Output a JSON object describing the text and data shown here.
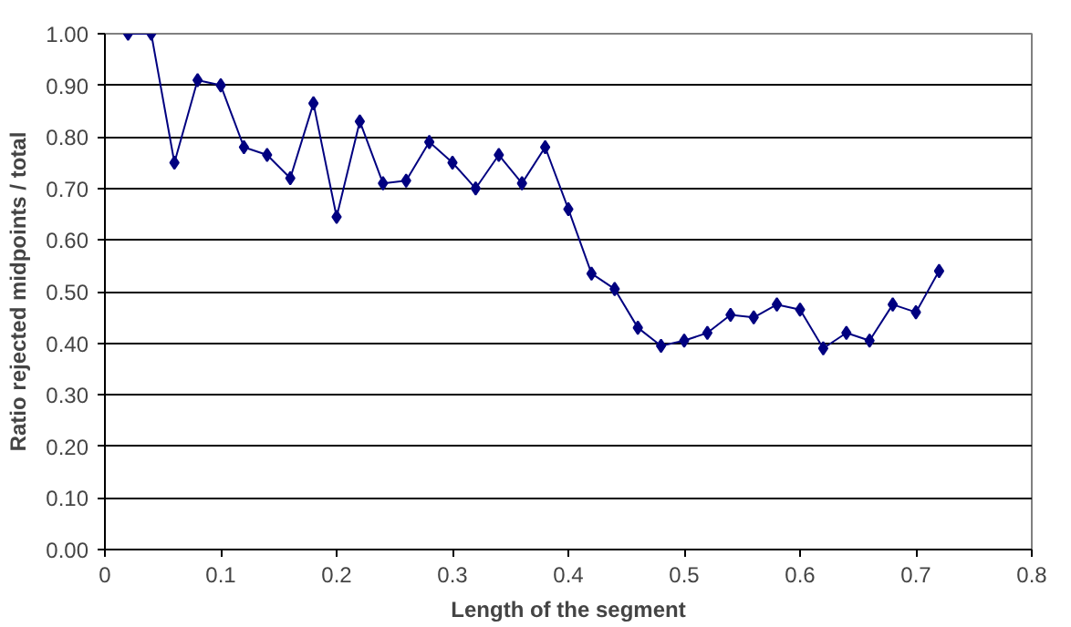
{
  "chart_data": {
    "type": "line",
    "xlabel": "Length of the segment",
    "ylabel": "Ratio rejected midpoints / total",
    "x": [
      0.02,
      0.04,
      0.06,
      0.08,
      0.1,
      0.12,
      0.14,
      0.16,
      0.18,
      0.2,
      0.22,
      0.24,
      0.26,
      0.28,
      0.3,
      0.32,
      0.34,
      0.36,
      0.38,
      0.4,
      0.42,
      0.44,
      0.46,
      0.48,
      0.5,
      0.52,
      0.54,
      0.56,
      0.58,
      0.6,
      0.62,
      0.64,
      0.66,
      0.68,
      0.7,
      0.72
    ],
    "series": [
      {
        "color": "#000080",
        "values": [
          1.0,
          1.0,
          0.75,
          0.91,
          0.9,
          0.78,
          0.765,
          0.72,
          0.865,
          0.645,
          0.83,
          0.71,
          0.715,
          0.79,
          0.75,
          0.7,
          0.765,
          0.71,
          0.78,
          0.66,
          0.535,
          0.505,
          0.43,
          0.395,
          0.405,
          0.42,
          0.455,
          0.45,
          0.475,
          0.465,
          0.39,
          0.42,
          0.405,
          0.475,
          0.46,
          0.54
        ]
      }
    ],
    "xlim": [
      0,
      0.8
    ],
    "xticks": [
      0,
      0.1,
      0.2,
      0.3,
      0.4,
      0.5,
      0.6,
      0.7,
      0.8
    ],
    "ylim": [
      0,
      1
    ],
    "yticks": [
      {
        "value": 0,
        "label": "0.00"
      },
      {
        "value": 0.1,
        "label": "0.10"
      },
      {
        "value": 0.2,
        "label": "0.20"
      },
      {
        "value": 0.3,
        "label": "0.30"
      },
      {
        "value": 0.4,
        "label": "0.40"
      },
      {
        "value": 0.5,
        "label": "0.50"
      },
      {
        "value": 0.6,
        "label": "0.60"
      },
      {
        "value": 0.7,
        "label": "0.70"
      },
      {
        "value": 0.8,
        "label": "0.80"
      },
      {
        "value": 0.9,
        "label": "0.90"
      },
      {
        "value": 1.0,
        "label": "1.00"
      }
    ],
    "grid": "y",
    "marker": "diamond",
    "line_style": "solid"
  }
}
